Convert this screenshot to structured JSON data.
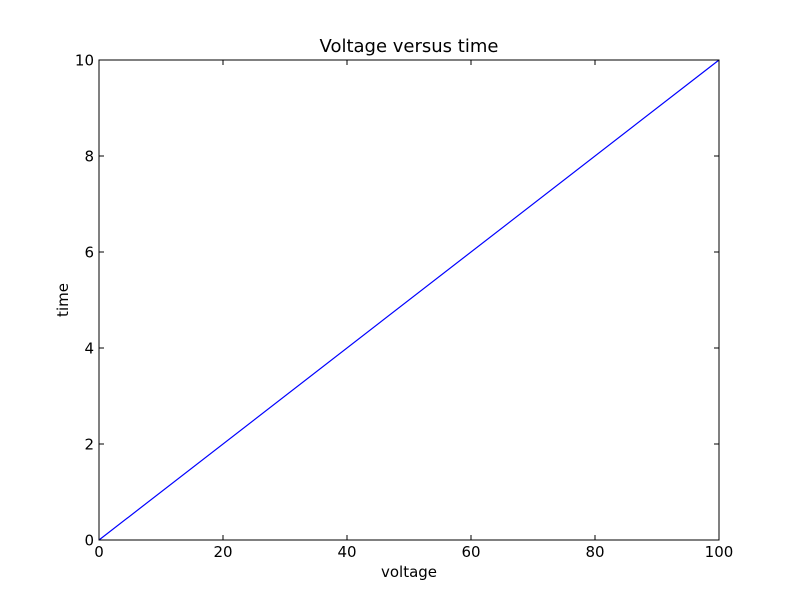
{
  "chart_data": {
    "type": "line",
    "title": "Voltage versus time",
    "xlabel": "voltage",
    "ylabel": "time",
    "xlim": [
      0,
      100
    ],
    "ylim": [
      0,
      10
    ],
    "xticks": [
      0,
      20,
      40,
      60,
      80,
      100
    ],
    "yticks": [
      0,
      2,
      4,
      6,
      8,
      10
    ],
    "xtick_labels": [
      "0",
      "20",
      "40",
      "60",
      "80",
      "100"
    ],
    "ytick_labels": [
      "0",
      "2",
      "4",
      "6",
      "8",
      "10"
    ],
    "grid": false,
    "series": [
      {
        "color": "#0000ff",
        "x": [
          0,
          100
        ],
        "y": [
          0,
          10
        ]
      }
    ]
  }
}
